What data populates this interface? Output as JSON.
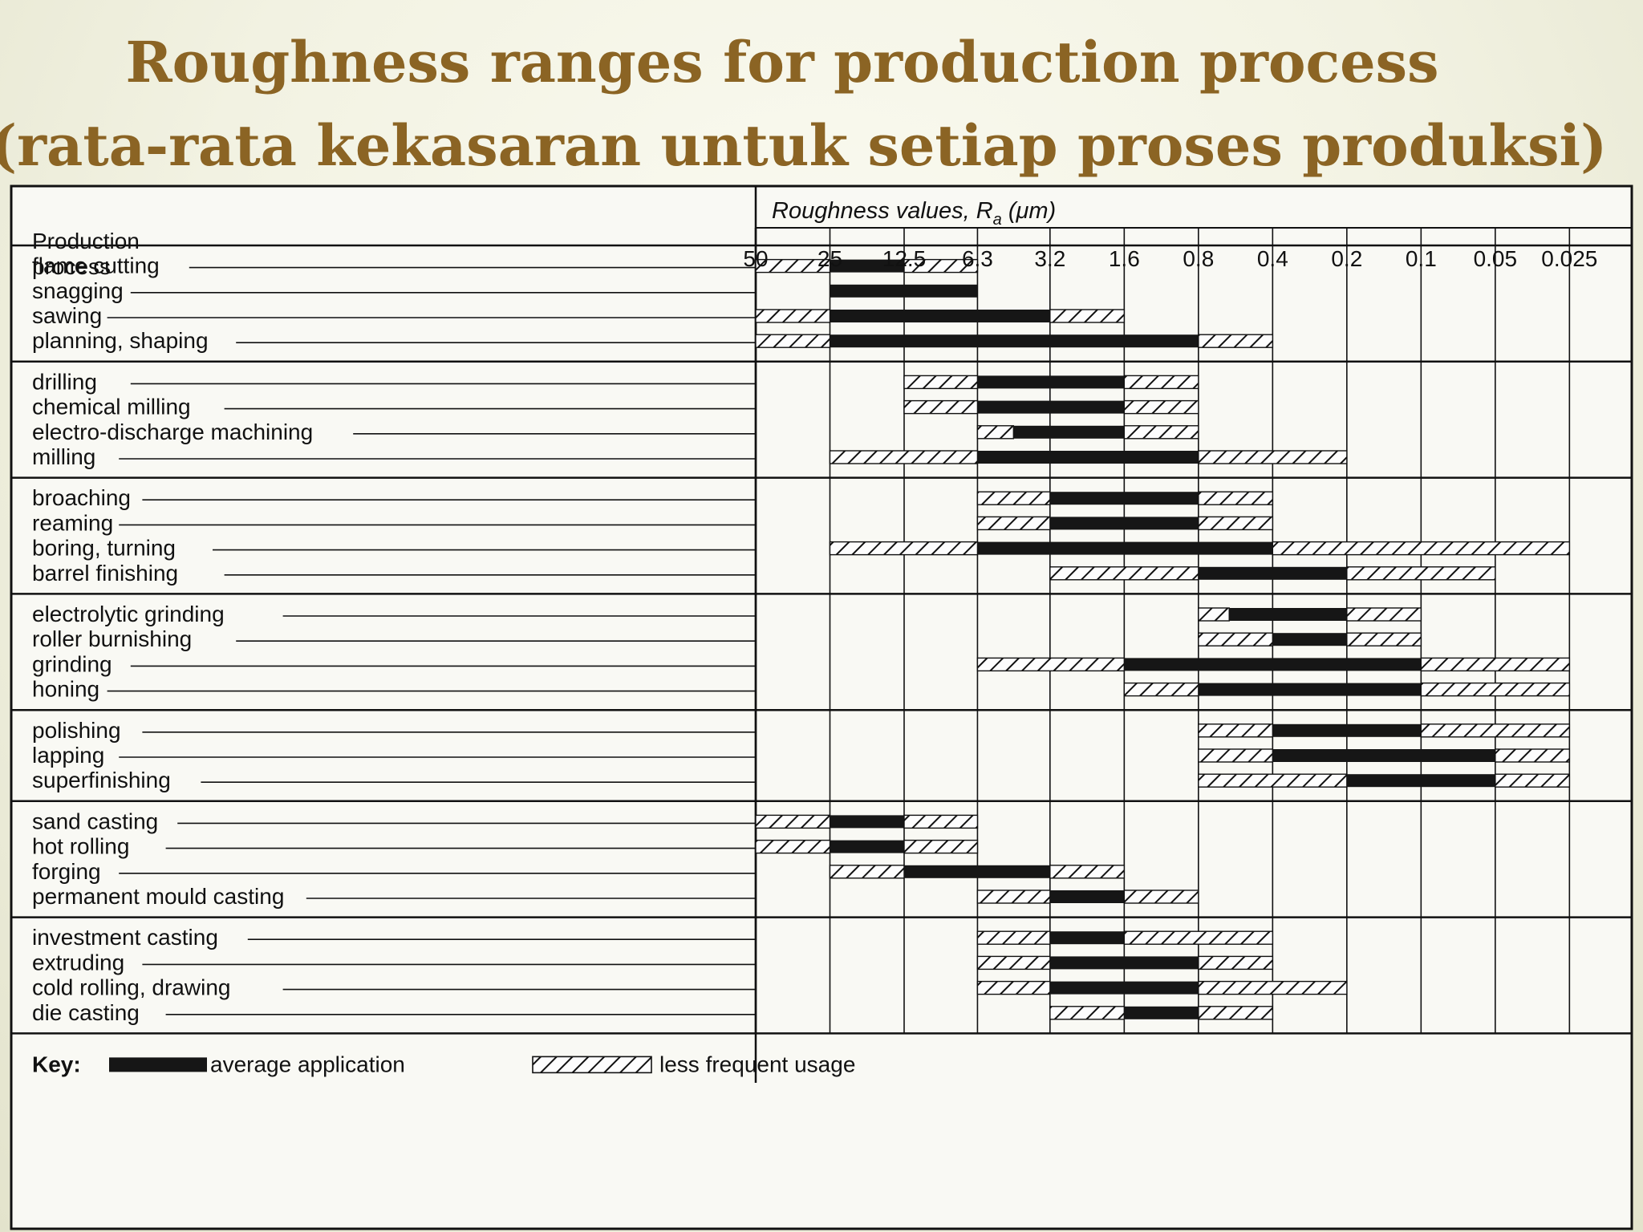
{
  "title_line1": "Roughness ranges for production process",
  "title_line2": "(rata-rata kekasaran untuk setiap proses produksi)",
  "chart_data": {
    "type": "range-bar",
    "header_label": "Production process",
    "axis_title": "Roughness values, R",
    "axis_title_sub": "a",
    "axis_title_unit": " (μm)",
    "tick_labels": [
      "50",
      "25",
      "12.5",
      "6.3",
      "3.2",
      "1.6",
      "0.8",
      "0.4",
      "0.2",
      "0.1",
      "0.05",
      "0.025"
    ],
    "key_label": "Key:",
    "key_average": "average application",
    "key_less": "less frequent usage",
    "groups": [
      [
        {
          "name": "flame cutting",
          "bars": [
            [
              "h",
              50,
              25
            ],
            [
              "s",
              25,
              12.5
            ],
            [
              "h",
              12.5,
              6.3
            ]
          ]
        },
        {
          "name": "snagging",
          "bars": [
            [
              "s",
              25,
              6.3
            ]
          ]
        },
        {
          "name": "sawing",
          "bars": [
            [
              "h",
              50,
              25
            ],
            [
              "s",
              25,
              3.2
            ],
            [
              "h",
              3.2,
              1.6
            ]
          ]
        },
        {
          "name": "planning, shaping",
          "bars": [
            [
              "h",
              50,
              25
            ],
            [
              "s",
              25,
              0.8
            ],
            [
              "h",
              0.8,
              0.4
            ]
          ]
        }
      ],
      [
        {
          "name": "drilling",
          "bars": [
            [
              "h",
              12.5,
              6.3
            ],
            [
              "s",
              6.3,
              1.6
            ],
            [
              "h",
              1.6,
              0.8
            ]
          ]
        },
        {
          "name": "chemical milling",
          "bars": [
            [
              "h",
              12.5,
              6.3
            ],
            [
              "s",
              6.3,
              1.6
            ],
            [
              "h",
              1.6,
              0.8
            ]
          ]
        },
        {
          "name": "electro-discharge machining",
          "bars": [
            [
              "h",
              6.3,
              4.5
            ],
            [
              "s",
              4.5,
              1.6
            ],
            [
              "h",
              1.6,
              0.8
            ]
          ]
        },
        {
          "name": "milling",
          "bars": [
            [
              "h",
              25,
              6.3
            ],
            [
              "s",
              6.3,
              0.8
            ],
            [
              "h",
              0.8,
              0.2
            ]
          ]
        }
      ],
      [
        {
          "name": "broaching",
          "bars": [
            [
              "h",
              6.3,
              3.2
            ],
            [
              "s",
              3.2,
              0.8
            ],
            [
              "h",
              0.8,
              0.4
            ]
          ]
        },
        {
          "name": "reaming",
          "bars": [
            [
              "h",
              6.3,
              3.2
            ],
            [
              "s",
              3.2,
              0.8
            ],
            [
              "h",
              0.8,
              0.4
            ]
          ]
        },
        {
          "name": "boring, turning",
          "bars": [
            [
              "h",
              25,
              6.3
            ],
            [
              "s",
              6.3,
              0.4
            ],
            [
              "h",
              0.4,
              0.025
            ]
          ]
        },
        {
          "name": "barrel finishing",
          "bars": [
            [
              "h",
              3.2,
              0.8
            ],
            [
              "s",
              0.8,
              0.2
            ],
            [
              "h",
              0.2,
              0.05
            ]
          ]
        }
      ],
      [
        {
          "name": "electrolytic grinding",
          "bars": [
            [
              "h",
              0.8,
              0.6
            ],
            [
              "s",
              0.6,
              0.2
            ],
            [
              "h",
              0.2,
              0.1
            ]
          ]
        },
        {
          "name": "roller burnishing",
          "bars": [
            [
              "h",
              0.8,
              0.4
            ],
            [
              "s",
              0.4,
              0.2
            ],
            [
              "h",
              0.2,
              0.1
            ]
          ]
        },
        {
          "name": "grinding",
          "bars": [
            [
              "h",
              6.3,
              1.6
            ],
            [
              "s",
              1.6,
              0.1
            ],
            [
              "h",
              0.1,
              0.025
            ]
          ]
        },
        {
          "name": "honing",
          "bars": [
            [
              "h",
              1.6,
              0.8
            ],
            [
              "s",
              0.8,
              0.1
            ],
            [
              "h",
              0.1,
              0.025
            ]
          ]
        }
      ],
      [
        {
          "name": "polishing",
          "bars": [
            [
              "h",
              0.8,
              0.4
            ],
            [
              "s",
              0.4,
              0.1
            ],
            [
              "h",
              0.1,
              0.025
            ]
          ]
        },
        {
          "name": "lapping",
          "bars": [
            [
              "h",
              0.8,
              0.4
            ],
            [
              "s",
              0.4,
              0.05
            ],
            [
              "h",
              0.05,
              0.025
            ]
          ]
        },
        {
          "name": "superfinishing",
          "bars": [
            [
              "h",
              0.8,
              0.2
            ],
            [
              "s",
              0.2,
              0.05
            ],
            [
              "h",
              0.05,
              0.025
            ]
          ]
        }
      ],
      [
        {
          "name": "sand casting",
          "bars": [
            [
              "h",
              50,
              25
            ],
            [
              "s",
              25,
              12.5
            ],
            [
              "h",
              12.5,
              6.3
            ]
          ]
        },
        {
          "name": "hot rolling",
          "bars": [
            [
              "h",
              50,
              25
            ],
            [
              "s",
              25,
              12.5
            ],
            [
              "h",
              12.5,
              6.3
            ]
          ]
        },
        {
          "name": "forging",
          "bars": [
            [
              "h",
              25,
              12.5
            ],
            [
              "s",
              12.5,
              3.2
            ],
            [
              "h",
              3.2,
              1.6
            ]
          ]
        },
        {
          "name": "permanent mould casting",
          "bars": [
            [
              "h",
              6.3,
              3.2
            ],
            [
              "s",
              3.2,
              1.6
            ],
            [
              "h",
              1.6,
              0.8
            ]
          ]
        }
      ],
      [
        {
          "name": "investment casting",
          "bars": [
            [
              "h",
              6.3,
              3.2
            ],
            [
              "s",
              3.2,
              1.6
            ],
            [
              "h",
              1.6,
              0.4
            ]
          ]
        },
        {
          "name": "extruding",
          "bars": [
            [
              "h",
              6.3,
              3.2
            ],
            [
              "s",
              3.2,
              0.8
            ],
            [
              "h",
              0.8,
              0.4
            ]
          ]
        },
        {
          "name": "cold rolling, drawing",
          "bars": [
            [
              "h",
              6.3,
              3.2
            ],
            [
              "s",
              3.2,
              0.8
            ],
            [
              "h",
              0.8,
              0.2
            ]
          ]
        },
        {
          "name": "die casting",
          "bars": [
            [
              "h",
              3.2,
              1.6
            ],
            [
              "s",
              1.6,
              0.8
            ],
            [
              "h",
              0.8,
              0.4
            ]
          ]
        }
      ]
    ]
  }
}
